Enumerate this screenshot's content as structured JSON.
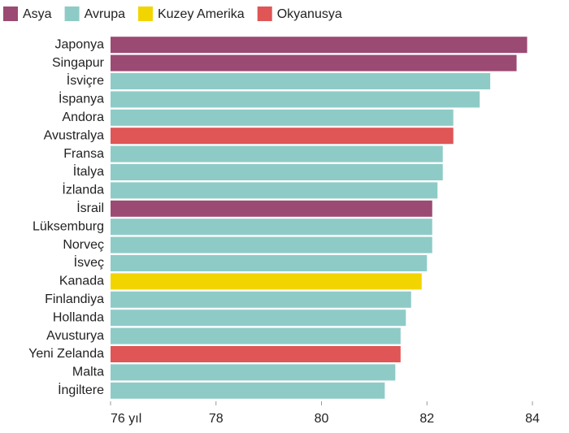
{
  "chart_data": {
    "type": "bar",
    "orientation": "horizontal",
    "categories": [
      "Japonya",
      "Singapur",
      "İsviçre",
      "İspanya",
      "Andora",
      "Avustralya",
      "Fransa",
      "İtalya",
      "İzlanda",
      "İsrail",
      "Lüksemburg",
      "Norveç",
      "İsveç",
      "Kanada",
      "Finlandiya",
      "Hollanda",
      "Avusturya",
      "Yeni Zelanda",
      "Malta",
      "İngiltere"
    ],
    "series": [
      {
        "name": "Asya",
        "color": "#9b4a73",
        "values": [
          83.9,
          83.7,
          null,
          null,
          null,
          null,
          null,
          null,
          null,
          82.1,
          null,
          null,
          null,
          null,
          null,
          null,
          null,
          null,
          null,
          null
        ]
      },
      {
        "name": "Avrupa",
        "color": "#8ecbc7",
        "values": [
          null,
          null,
          83.2,
          83.0,
          82.5,
          null,
          82.3,
          82.3,
          82.2,
          null,
          82.1,
          82.1,
          82.0,
          null,
          81.7,
          81.6,
          81.5,
          null,
          81.4,
          81.2
        ]
      },
      {
        "name": "Kuzey Amerika",
        "color": "#f2d500",
        "values": [
          null,
          null,
          null,
          null,
          null,
          null,
          null,
          null,
          null,
          null,
          null,
          null,
          null,
          81.9,
          null,
          null,
          null,
          null,
          null,
          null
        ]
      },
      {
        "name": "Okyanusya",
        "color": "#e05555",
        "values": [
          null,
          null,
          null,
          null,
          null,
          82.5,
          null,
          null,
          null,
          null,
          null,
          null,
          null,
          null,
          null,
          null,
          null,
          81.5,
          null,
          null
        ]
      }
    ],
    "xlim": [
      76,
      84
    ],
    "xticks": [
      {
        "value": 76,
        "label": "76 yıl"
      },
      78,
      80,
      82,
      84
    ],
    "legend": "top-left"
  }
}
